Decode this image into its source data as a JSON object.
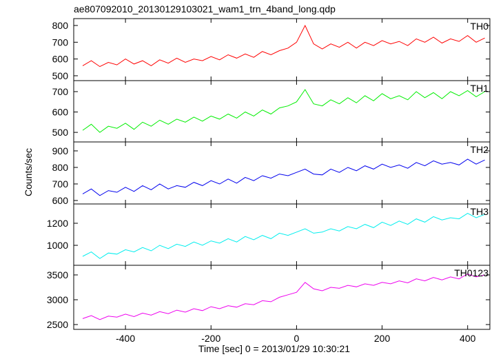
{
  "chart_data": [
    {
      "type": "line",
      "title": "ae807092010_20130129103021_wam1_trn_4band_long.qdp",
      "ylabel": "Counts/sec",
      "label": "TH0",
      "color": "#ff0000",
      "x": [
        -500,
        -480,
        -460,
        -440,
        -420,
        -400,
        -380,
        -360,
        -340,
        -320,
        -300,
        -280,
        -260,
        -240,
        -220,
        -200,
        -180,
        -160,
        -140,
        -120,
        -100,
        -80,
        -60,
        -40,
        -20,
        0,
        20,
        40,
        60,
        80,
        100,
        120,
        140,
        160,
        180,
        200,
        220,
        240,
        260,
        280,
        300,
        320,
        340,
        360,
        380,
        400,
        420,
        440
      ],
      "values": [
        560,
        590,
        555,
        580,
        565,
        600,
        570,
        590,
        560,
        595,
        575,
        605,
        580,
        600,
        590,
        615,
        595,
        625,
        605,
        630,
        610,
        645,
        625,
        650,
        665,
        700,
        800,
        690,
        660,
        690,
        670,
        700,
        665,
        700,
        680,
        710,
        690,
        705,
        680,
        720,
        700,
        730,
        695,
        720,
        705,
        740,
        700,
        725
      ],
      "ylim": [
        471,
        841
      ],
      "yticks": [
        500,
        600,
        700,
        800
      ]
    },
    {
      "type": "line",
      "label": "TH1",
      "color": "#00ee00",
      "x": [
        -500,
        -480,
        -460,
        -440,
        -420,
        -400,
        -380,
        -360,
        -340,
        -320,
        -300,
        -280,
        -260,
        -240,
        -220,
        -200,
        -180,
        -160,
        -140,
        -120,
        -100,
        -80,
        -60,
        -40,
        -20,
        0,
        20,
        40,
        60,
        80,
        100,
        120,
        140,
        160,
        180,
        200,
        220,
        240,
        260,
        280,
        300,
        320,
        340,
        360,
        380,
        400,
        420,
        440
      ],
      "values": [
        510,
        540,
        500,
        530,
        520,
        545,
        515,
        550,
        530,
        560,
        540,
        565,
        550,
        575,
        555,
        580,
        565,
        590,
        570,
        600,
        580,
        610,
        590,
        620,
        630,
        650,
        710,
        640,
        630,
        660,
        640,
        670,
        645,
        680,
        655,
        690,
        665,
        680,
        660,
        700,
        670,
        695,
        665,
        700,
        680,
        705,
        675,
        700
      ],
      "ylim": [
        453,
        754
      ],
      "yticks": [
        500,
        600,
        700
      ]
    },
    {
      "type": "line",
      "label": "TH2",
      "color": "#0000ee",
      "x": [
        -500,
        -480,
        -460,
        -440,
        -420,
        -400,
        -380,
        -360,
        -340,
        -320,
        -300,
        -280,
        -260,
        -240,
        -220,
        -200,
        -180,
        -160,
        -140,
        -120,
        -100,
        -80,
        -60,
        -40,
        -20,
        0,
        20,
        40,
        60,
        80,
        100,
        120,
        140,
        160,
        180,
        200,
        220,
        240,
        260,
        280,
        300,
        320,
        340,
        360,
        380,
        400,
        420,
        440
      ],
      "values": [
        640,
        670,
        630,
        660,
        650,
        680,
        655,
        690,
        665,
        700,
        670,
        690,
        680,
        710,
        690,
        720,
        700,
        730,
        705,
        740,
        720,
        750,
        735,
        760,
        750,
        770,
        790,
        760,
        755,
        790,
        770,
        800,
        780,
        810,
        790,
        820,
        800,
        815,
        795,
        830,
        810,
        840,
        820,
        830,
        815,
        850,
        820,
        845
      ],
      "ylim": [
        579,
        954
      ],
      "yticks": [
        600,
        700,
        800,
        900
      ]
    },
    {
      "type": "line",
      "label": "TH3",
      "color": "#00eeee",
      "x": [
        -500,
        -480,
        -460,
        -440,
        -420,
        -400,
        -380,
        -360,
        -340,
        -320,
        -300,
        -280,
        -260,
        -240,
        -220,
        -200,
        -180,
        -160,
        -140,
        -120,
        -100,
        -80,
        -60,
        -40,
        -20,
        0,
        20,
        40,
        60,
        80,
        100,
        120,
        140,
        160,
        180,
        200,
        220,
        240,
        260,
        280,
        300,
        320,
        340,
        360,
        380,
        400,
        420,
        440
      ],
      "values": [
        900,
        940,
        880,
        930,
        920,
        960,
        940,
        980,
        950,
        1000,
        970,
        1010,
        990,
        1030,
        1000,
        1040,
        1020,
        1060,
        1030,
        1080,
        1050,
        1090,
        1060,
        1110,
        1090,
        1120,
        1150,
        1110,
        1120,
        1150,
        1130,
        1170,
        1150,
        1190,
        1160,
        1210,
        1180,
        1220,
        1190,
        1240,
        1210,
        1260,
        1230,
        1250,
        1240,
        1290,
        1250,
        1280
      ],
      "ylim": [
        819,
        1375
      ],
      "yticks": [
        1000,
        1200
      ]
    },
    {
      "type": "line",
      "label": "TH0123",
      "color": "#ee00ee",
      "xlabel": "Time [sec] 0 = 2013/01/29 10:30:21",
      "x": [
        -500,
        -480,
        -460,
        -440,
        -420,
        -400,
        -380,
        -360,
        -340,
        -320,
        -300,
        -280,
        -260,
        -240,
        -220,
        -200,
        -180,
        -160,
        -140,
        -120,
        -100,
        -80,
        -60,
        -40,
        -20,
        0,
        20,
        40,
        60,
        80,
        100,
        120,
        140,
        160,
        180,
        200,
        220,
        240,
        260,
        280,
        300,
        320,
        340,
        360,
        380,
        400,
        420,
        440
      ],
      "values": [
        2620,
        2680,
        2600,
        2670,
        2650,
        2710,
        2660,
        2730,
        2690,
        2760,
        2720,
        2790,
        2750,
        2820,
        2780,
        2860,
        2820,
        2880,
        2850,
        2920,
        2900,
        2980,
        2960,
        3050,
        3100,
        3150,
        3350,
        3220,
        3180,
        3250,
        3230,
        3290,
        3260,
        3320,
        3290,
        3350,
        3320,
        3380,
        3340,
        3420,
        3380,
        3450,
        3400,
        3460,
        3420,
        3520,
        3460,
        3500
      ],
      "ylim": [
        2403,
        3694
      ],
      "yticks": [
        2500,
        3000,
        3500
      ],
      "xlim": [
        -521,
        452
      ],
      "xticks": [
        -400,
        -200,
        0,
        200,
        400
      ]
    }
  ]
}
